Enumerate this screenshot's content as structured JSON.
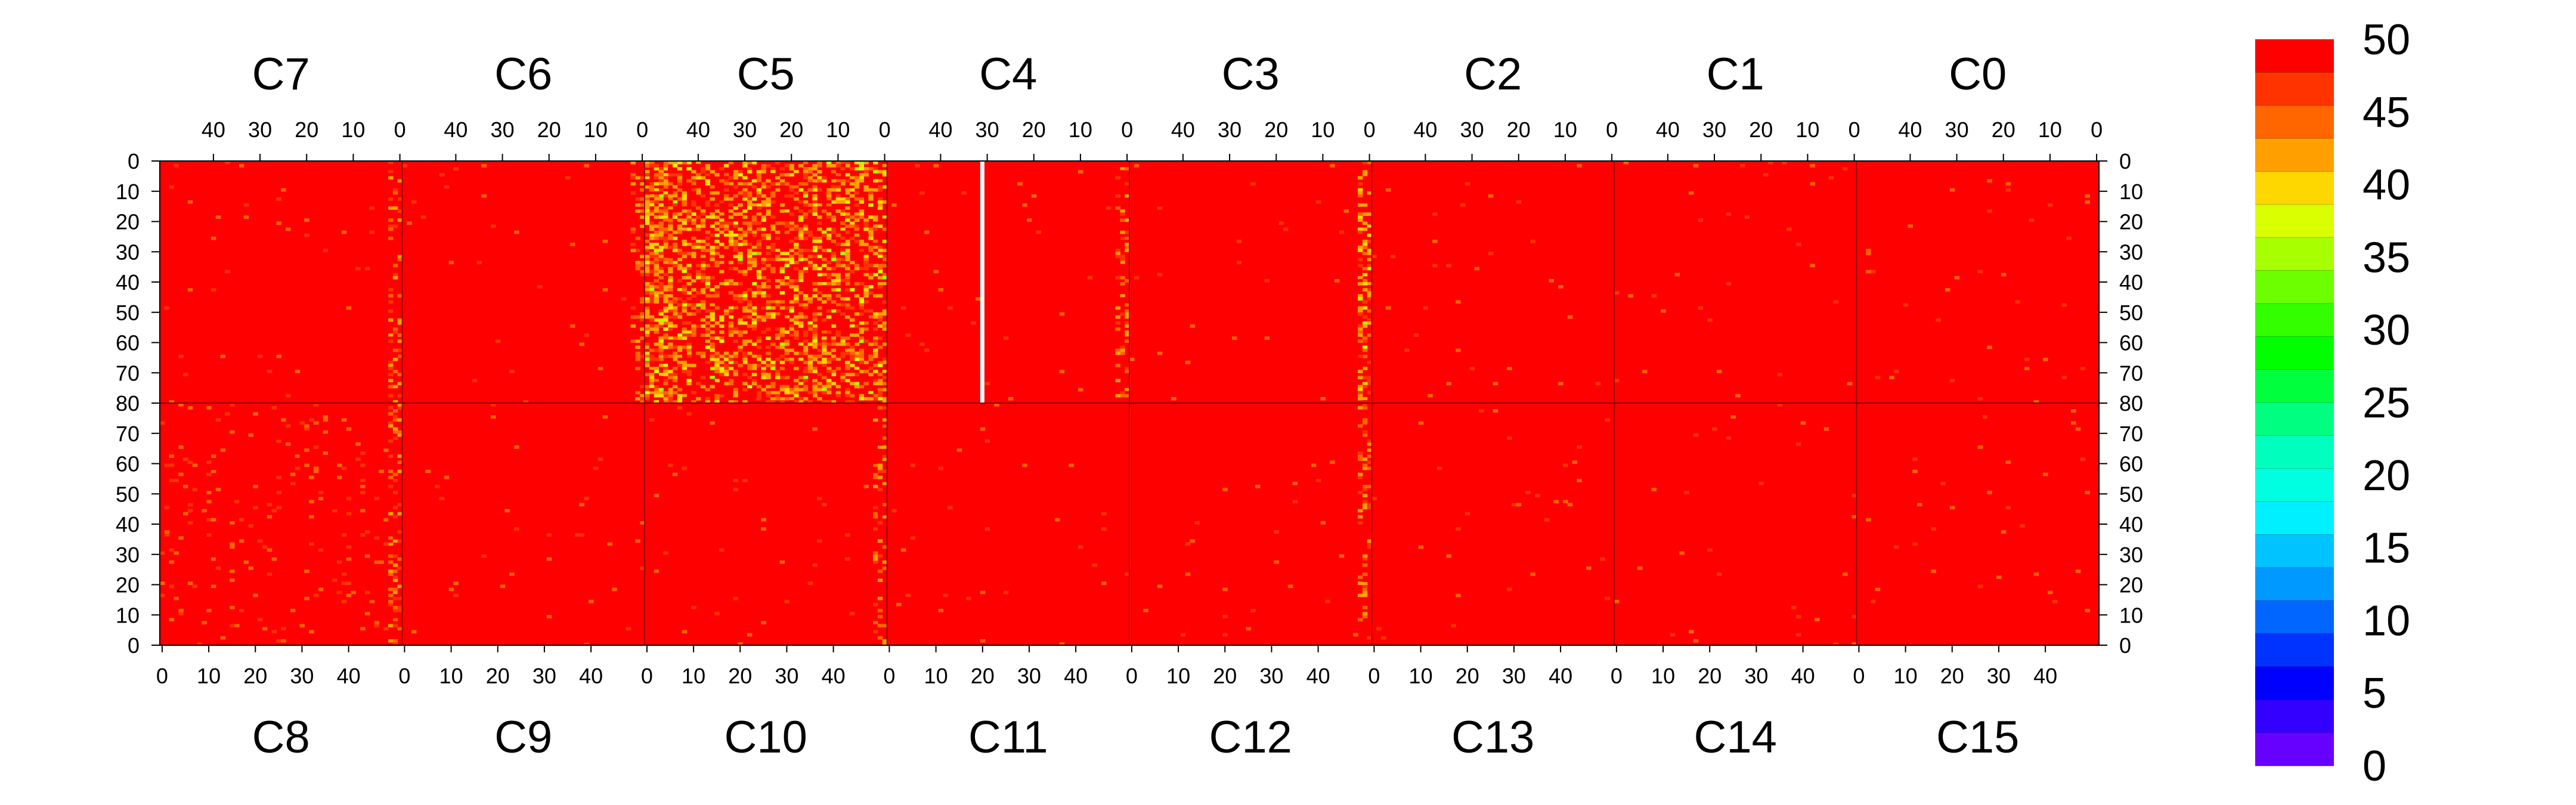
{
  "chart_data": {
    "type": "heatmap",
    "title": "",
    "xlabel": "",
    "ylabel": "",
    "top_row": {
      "chips": [
        "C7",
        "C6",
        "C5",
        "C4",
        "C3",
        "C2",
        "C1",
        "C0"
      ],
      "x_tick_labels": [
        "40",
        "30",
        "20",
        "10",
        "0"
      ],
      "x_direction": "descending",
      "y_tick_labels": [
        "0",
        "10",
        "20",
        "30",
        "40",
        "50",
        "60",
        "70",
        "80"
      ],
      "y_direction": "top-down"
    },
    "bottom_row": {
      "chips": [
        "C8",
        "C9",
        "C10",
        "C11",
        "C12",
        "C13",
        "C14",
        "C15"
      ],
      "x_tick_labels": [
        "0",
        "10",
        "20",
        "30",
        "40"
      ],
      "x_direction": "ascending",
      "y_tick_labels": [
        "80",
        "70",
        "60",
        "50",
        "40",
        "30",
        "20",
        "10",
        "0"
      ],
      "y_direction": "bottom-up"
    },
    "columns_per_chip": 52,
    "rows_per_chip": 80,
    "z_range": [
      0,
      50
    ],
    "colorbar": {
      "tick_labels": [
        "50",
        "45",
        "40",
        "35",
        "30",
        "25",
        "20",
        "15",
        "10",
        "5",
        "0"
      ],
      "colors": [
        "#ff0000",
        "#ff3300",
        "#ff6600",
        "#ffa000",
        "#ffd700",
        "#d9ff00",
        "#a8ff00",
        "#6dff00",
        "#33ff00",
        "#00ff00",
        "#00ff3c",
        "#00ff80",
        "#00ffbf",
        "#00ffe0",
        "#00f0ff",
        "#00c3ff",
        "#0099ff",
        "#0066ff",
        "#0033ff",
        "#0000ff",
        "#3300ff",
        "#6600ff"
      ]
    },
    "background_value": 50,
    "noisy_columns": [
      {
        "chip": "C7",
        "columns": "0-2",
        "level": "moderate"
      },
      {
        "chip": "C6",
        "columns": "0-2",
        "level": "moderate"
      },
      {
        "chip": "C5",
        "columns": "all",
        "level": "high"
      },
      {
        "chip": "C5",
        "columns": "46-51",
        "level": "high"
      },
      {
        "chip": "C4",
        "columns": "0-2",
        "level": "moderate"
      },
      {
        "chip": "C3",
        "columns": "0-2",
        "level": "high"
      },
      {
        "chip": "C8",
        "columns": "all",
        "level": "low"
      },
      {
        "chip": "C8",
        "columns": "49-51",
        "level": "moderate"
      },
      {
        "chip": "C10",
        "columns": "49-51",
        "level": "moderate"
      },
      {
        "chip": "C12",
        "columns": "49-51",
        "level": "moderate"
      }
    ],
    "dead_column": {
      "chip": "C4",
      "column": 31,
      "value": "blank"
    }
  }
}
